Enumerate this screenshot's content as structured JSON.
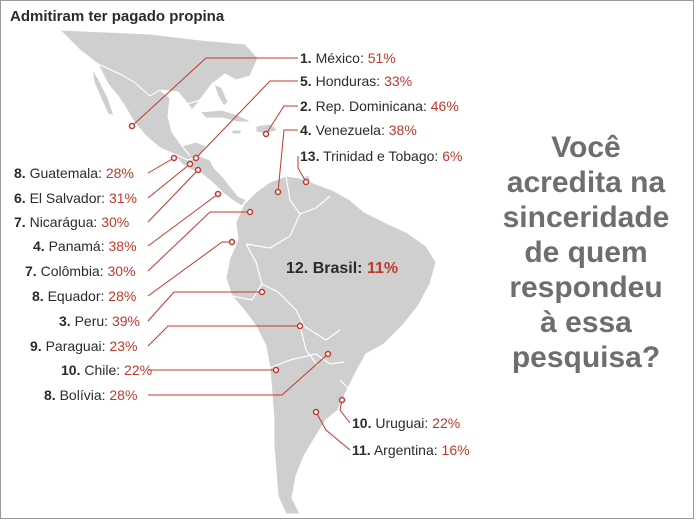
{
  "title": "Admitiram ter pagado propina",
  "colors": {
    "land": "#cfcfcf",
    "line": "#c0392b",
    "text": "#2b2b2b",
    "percent": "#c0392b",
    "question": "#6e6e6e"
  },
  "countries": [
    {
      "id": "mexico",
      "rank": "1.",
      "name": "México",
      "pct": "51%"
    },
    {
      "id": "honduras",
      "rank": "5.",
      "name": "Honduras",
      "pct": "33%"
    },
    {
      "id": "rep-dominicana",
      "rank": "2.",
      "name": "Rep. Dominicana",
      "pct": "46%"
    },
    {
      "id": "venezuela",
      "rank": "4.",
      "name": "Venezuela",
      "pct": "38%"
    },
    {
      "id": "trinidad",
      "rank": "13.",
      "name": "Trinidad e Tobago",
      "pct": "6%"
    },
    {
      "id": "guatemala",
      "rank": "8.",
      "name": "Guatemala",
      "pct": "28%"
    },
    {
      "id": "el-salvador",
      "rank": "6.",
      "name": "El Salvador",
      "pct": "31%"
    },
    {
      "id": "nicaragua",
      "rank": "7.",
      "name": "Nicarágua",
      "pct": "30%"
    },
    {
      "id": "panama",
      "rank": "4.",
      "name": "Panamá",
      "pct": "38%"
    },
    {
      "id": "colombia",
      "rank": "7.",
      "name": "Colômbia",
      "pct": "30%"
    },
    {
      "id": "equador",
      "rank": "8.",
      "name": "Equador",
      "pct": "28%"
    },
    {
      "id": "peru",
      "rank": "3.",
      "name": "Peru",
      "pct": "39%"
    },
    {
      "id": "paraguai",
      "rank": "9.",
      "name": "Paraguai",
      "pct": "23%"
    },
    {
      "id": "chile",
      "rank": "10.",
      "name": "Chile",
      "pct": "22%"
    },
    {
      "id": "bolivia",
      "rank": "8.",
      "name": "Bolívia",
      "pct": "28%"
    },
    {
      "id": "brasil",
      "rank": "12.",
      "name": "Brasil",
      "pct": "11%"
    },
    {
      "id": "uruguai",
      "rank": "10.",
      "name": "Uruguai",
      "pct": "22%"
    },
    {
      "id": "argentina",
      "rank": "11.",
      "name": "Argentina",
      "pct": "16%"
    }
  ],
  "question": [
    "Você",
    "acredita na",
    "sinceridade",
    "de quem",
    "respondeu",
    "à essa",
    "pesquisa?"
  ]
}
